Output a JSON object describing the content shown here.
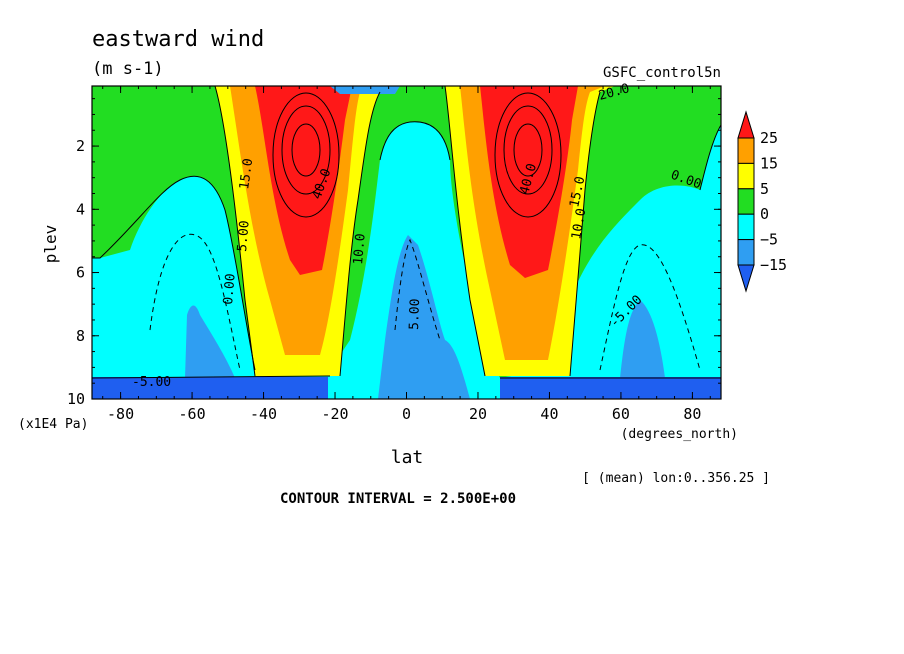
{
  "chart_data": {
    "type": "heatmap",
    "title": "eastward wind",
    "subtitle": "(m s-1)",
    "dataset": "GSFC_control5n",
    "xlabel": "lat",
    "x_units": "(degrees_north)",
    "ylabel": "plev",
    "y_units": "(x1E4 Pa)",
    "xlim": [
      -88,
      88
    ],
    "ylim": [
      10,
      0.1
    ],
    "x_ticks": [
      -80,
      -60,
      -40,
      -20,
      0,
      20,
      40,
      60,
      80
    ],
    "x_tick_labels": [
      "-80",
      "-60",
      "-40",
      "-20",
      "0",
      "20",
      "40",
      "60",
      "80"
    ],
    "y_ticks": [
      2,
      4,
      6,
      8,
      10
    ],
    "y_tick_labels": [
      "2",
      "4",
      "6",
      "8",
      "10"
    ],
    "colorbar_levels": [
      25,
      15,
      5,
      0,
      -5,
      -15
    ],
    "colorbar_labels": [
      "25",
      "15",
      "5",
      "0",
      "−5",
      "−15"
    ],
    "colors": [
      "#1f5ff0",
      "#2f9ef2",
      "#00ffff",
      "#22dd22",
      "#ffff00",
      "#ffa000",
      "#ff1818"
    ],
    "features": [
      {
        "name": "southern-jet",
        "lat": -28,
        "plev": 2.0,
        "peak": 40
      },
      {
        "name": "northern-jet",
        "lat": 33,
        "plev": 2.0,
        "peak": 40
      },
      {
        "name": "equatorial-easterlies",
        "lat": 5,
        "plev": 8.5,
        "peak": -8
      }
    ],
    "contour_labels": [
      "0.00",
      "0.00",
      "5.00",
      "5.00",
      "10.0",
      "10.0",
      "15.0",
      "15.0",
      "20.0",
      "40.0",
      "40.0",
      "-5.00",
      "-5.00"
    ],
    "contour_interval_text": "CONTOUR INTERVAL = 2.500E+00",
    "mean_note": "[ (mean) lon:0..356.25 ]"
  }
}
